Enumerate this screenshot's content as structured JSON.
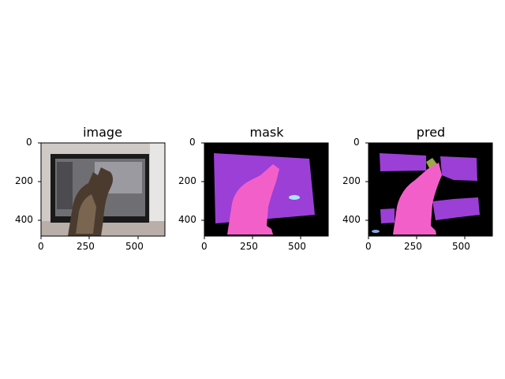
{
  "figure": {
    "panels": [
      {
        "title": "image",
        "x_ticks": [
          "0",
          "250",
          "500"
        ],
        "y_ticks": [
          "0",
          "200",
          "400"
        ],
        "content": "photo of a tabby cat sitting in front of a flat-screen TV"
      },
      {
        "title": "mask",
        "x_ticks": [
          "0",
          "250",
          "500"
        ],
        "y_ticks": [
          "0",
          "200",
          "400"
        ],
        "colors": {
          "background": "#000000",
          "tv": "#9b3fd6",
          "cat": "#f35fc9",
          "object": "#a8e6ff"
        }
      },
      {
        "title": "pred",
        "x_ticks": [
          "0",
          "250",
          "500"
        ],
        "y_ticks": [
          "0",
          "200",
          "400"
        ],
        "colors": {
          "background": "#000000",
          "tv": "#9b3fd6",
          "cat": "#f35fc9",
          "plant": "#9ca84a",
          "object": "#8aa8e6"
        }
      }
    ]
  }
}
